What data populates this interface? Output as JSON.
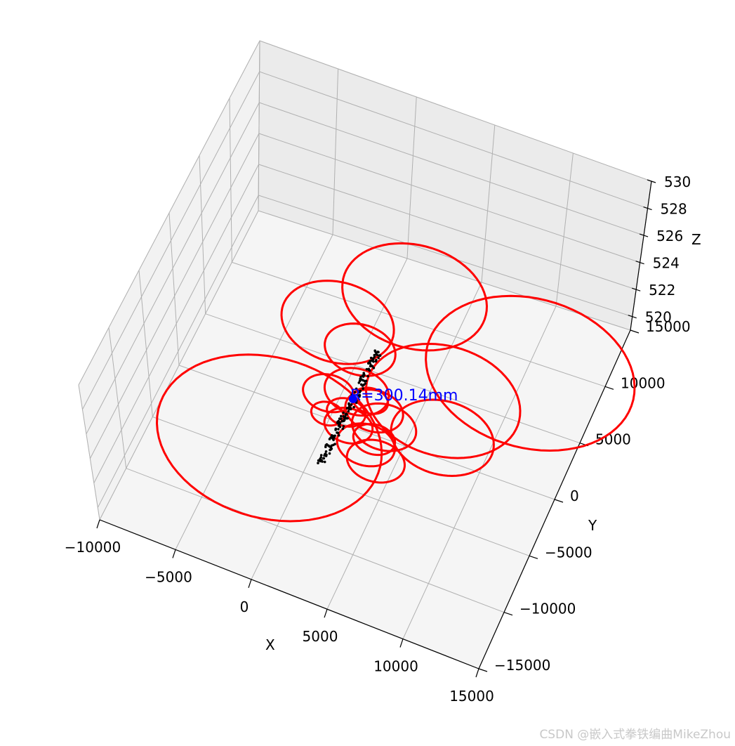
{
  "chart_data": {
    "type": "scatter",
    "projection": "3d",
    "axes": {
      "x": {
        "label": "X",
        "ticks": [
          -10000,
          -5000,
          0,
          5000,
          10000,
          15000
        ],
        "tick_labels": [
          "−10000",
          "−5000",
          "0",
          "5000",
          "10000",
          "15000"
        ]
      },
      "y": {
        "label": "Y",
        "ticks": [
          15000,
          10000,
          5000,
          0,
          -5000,
          -10000,
          -15000
        ],
        "tick_labels": [
          "15000",
          "10000",
          "5000",
          "0",
          "−5000",
          "−10000",
          "−15000"
        ]
      },
      "z": {
        "label": "Z",
        "ticks": [
          530,
          528,
          526,
          524,
          522,
          520
        ],
        "tick_labels": [
          "530",
          "528",
          "526",
          "524",
          "522",
          "520"
        ]
      }
    },
    "grid": true,
    "series": [
      {
        "kind": "circles",
        "color": "#ff0000",
        "note": "red fitted circles, center and radius in X/Y data units",
        "circles": [
          {
            "cx": 1000,
            "cy": 13000,
            "r": 4500
          },
          {
            "cx": -2500,
            "cy": 8500,
            "r": 3500
          },
          {
            "cx": 9500,
            "cy": 10500,
            "r": 6500
          },
          {
            "cx": -500,
            "cy": 7000,
            "r": 2200
          },
          {
            "cx": 5500,
            "cy": 5500,
            "r": 4800
          },
          {
            "cx": 6500,
            "cy": 2500,
            "r": 3200
          },
          {
            "cx": -3000,
            "cy": -3000,
            "r": 7000
          },
          {
            "cx": 500,
            "cy": 3500,
            "r": 2000
          },
          {
            "cx": 2000,
            "cy": 2500,
            "r": 1800
          },
          {
            "cx": 3000,
            "cy": 1500,
            "r": 2000
          },
          {
            "cx": -1000,
            "cy": 2500,
            "r": 1600
          },
          {
            "cx": 1000,
            "cy": 500,
            "r": 1500
          },
          {
            "cx": 2500,
            "cy": -500,
            "r": 1800
          },
          {
            "cx": 3500,
            "cy": -1500,
            "r": 1800
          },
          {
            "cx": 500,
            "cy": 1500,
            "r": 1200
          },
          {
            "cx": 1500,
            "cy": 3200,
            "r": 1100
          },
          {
            "cx": 2800,
            "cy": 200,
            "r": 1300
          },
          {
            "cx": -500,
            "cy": 800,
            "r": 1000
          }
        ]
      },
      {
        "kind": "points",
        "color": "#000000",
        "note": "black measurement points along the column",
        "x_range": [
          300,
          800
        ],
        "y_range": [
          -3500,
          7500
        ]
      },
      {
        "kind": "marker",
        "color": "#0000ff",
        "x": 500,
        "y": 2800
      }
    ],
    "annotations": [
      {
        "text": "R=300.14mm",
        "color": "#0000ff",
        "x": 500,
        "y": 2800
      }
    ]
  },
  "watermark": "CSDN @嵌入式拳铁编曲MikeZhou"
}
